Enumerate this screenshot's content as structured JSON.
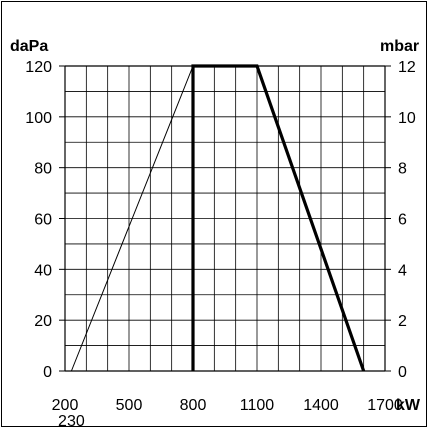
{
  "chart_data": {
    "type": "line",
    "left_unit": "daPa",
    "right_unit": "mbar",
    "x_unit": "kW",
    "x_ticks": [
      "200",
      "500",
      "800",
      "1100",
      "1400",
      "1700"
    ],
    "x_extra_tick": "230",
    "left_ticks": [
      "0",
      "20",
      "40",
      "60",
      "80",
      "100",
      "120"
    ],
    "right_ticks": [
      "0",
      "2",
      "4",
      "6",
      "8",
      "10",
      "12"
    ],
    "xlim": [
      200,
      1700
    ],
    "ylim": [
      0,
      120
    ],
    "grid": true,
    "series": [
      {
        "style": "thin",
        "x": [
          230,
          800
        ],
        "y": [
          0,
          120
        ]
      },
      {
        "style": "thick",
        "x": [
          800,
          800,
          1100,
          1600
        ],
        "y": [
          0,
          120,
          120,
          0
        ]
      }
    ]
  }
}
